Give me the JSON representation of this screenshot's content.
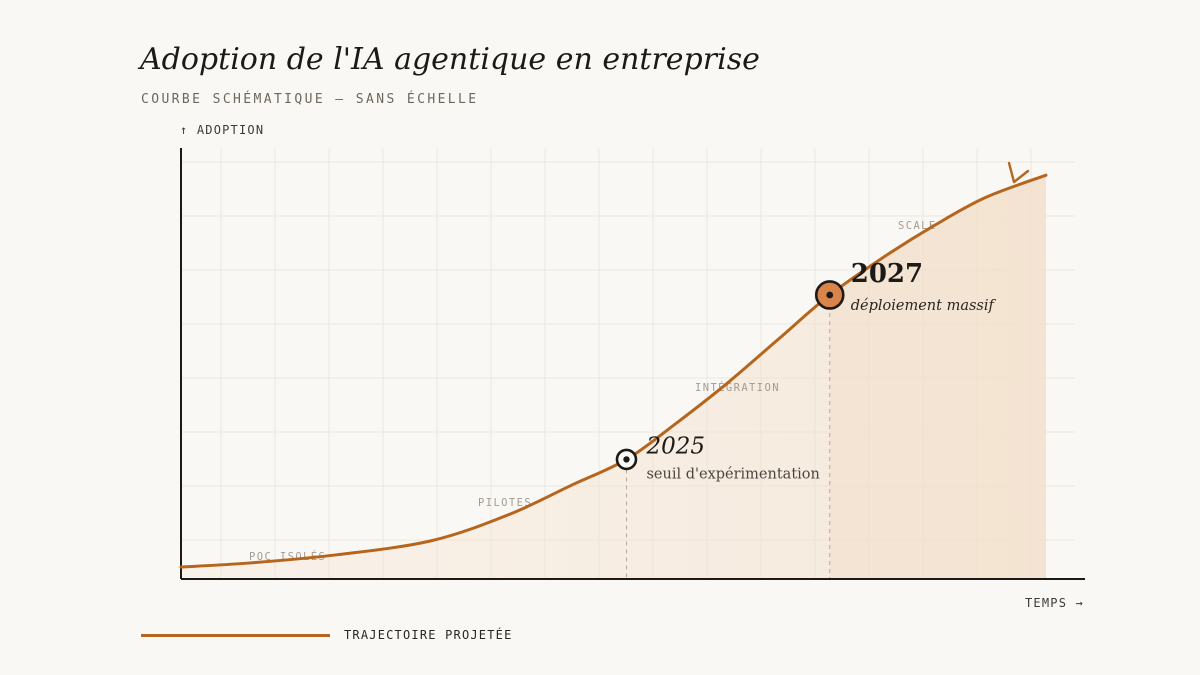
{
  "title": "Adoption de l'IA agentique en entreprise",
  "subtitle": "COURBE SCHÉMATIQUE — SANS ÉCHELLE",
  "chart_data": {
    "type": "area",
    "ylabel": "↑ ADOPTION",
    "xlabel": "TEMPS →",
    "grid": true,
    "scale": "none",
    "series": [
      {
        "name": "TRAJECTOIRE PROJETÉE",
        "color": "#b5651d",
        "x": [
          0,
          0.08,
          0.18,
          0.29,
          0.38,
          0.45,
          0.515,
          0.57,
          0.63,
          0.69,
          0.75,
          0.81,
          0.87,
          0.93,
          1.0
        ],
        "y": [
          0.0,
          0.01,
          0.03,
          0.065,
          0.13,
          0.2,
          0.265,
          0.35,
          0.45,
          0.56,
          0.67,
          0.76,
          0.84,
          0.91,
          0.965
        ]
      }
    ],
    "phases": [
      "POC ISOLÉS",
      "PILOTES",
      "INTÉGRATION",
      "SCALE"
    ],
    "annotations": [
      {
        "year": "2025",
        "label": "seuil d'expérimentation",
        "x": 0.515,
        "y": 0.265,
        "style": "ring"
      },
      {
        "year": "2027",
        "label": "déploiement massif",
        "x": 0.75,
        "y": 0.67,
        "style": "filled"
      }
    ],
    "colors": {
      "curve": "#b5651d",
      "fill": "#f3dfcb",
      "marker_fill": "#d9844a",
      "axis": "#1c1a17",
      "grid": "#ece7df"
    }
  },
  "legend": {
    "label": "TRAJECTOIRE PROJETÉE"
  }
}
